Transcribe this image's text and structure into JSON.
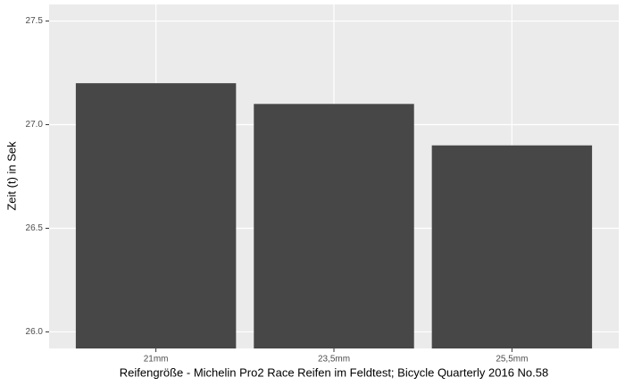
{
  "chart_data": {
    "type": "bar",
    "x_label": "Reifengröße - Michelin Pro2 Race Reifen im Feldtest; Bicycle Quarterly 2016 No.58",
    "y_label": "Zeit (t) in Sek",
    "categories": [
      "21mm",
      "23,5mm",
      "25,5mm"
    ],
    "values": [
      27.2,
      27.1,
      26.9
    ],
    "color": "#474747",
    "ylim": [
      25.92,
      27.58
    ],
    "yticks": [
      {
        "value": 26,
        "label": "26.0"
      },
      26.5,
      {
        "value": 27,
        "label": "27.0"
      },
      27.5
    ],
    "grid": true
  }
}
